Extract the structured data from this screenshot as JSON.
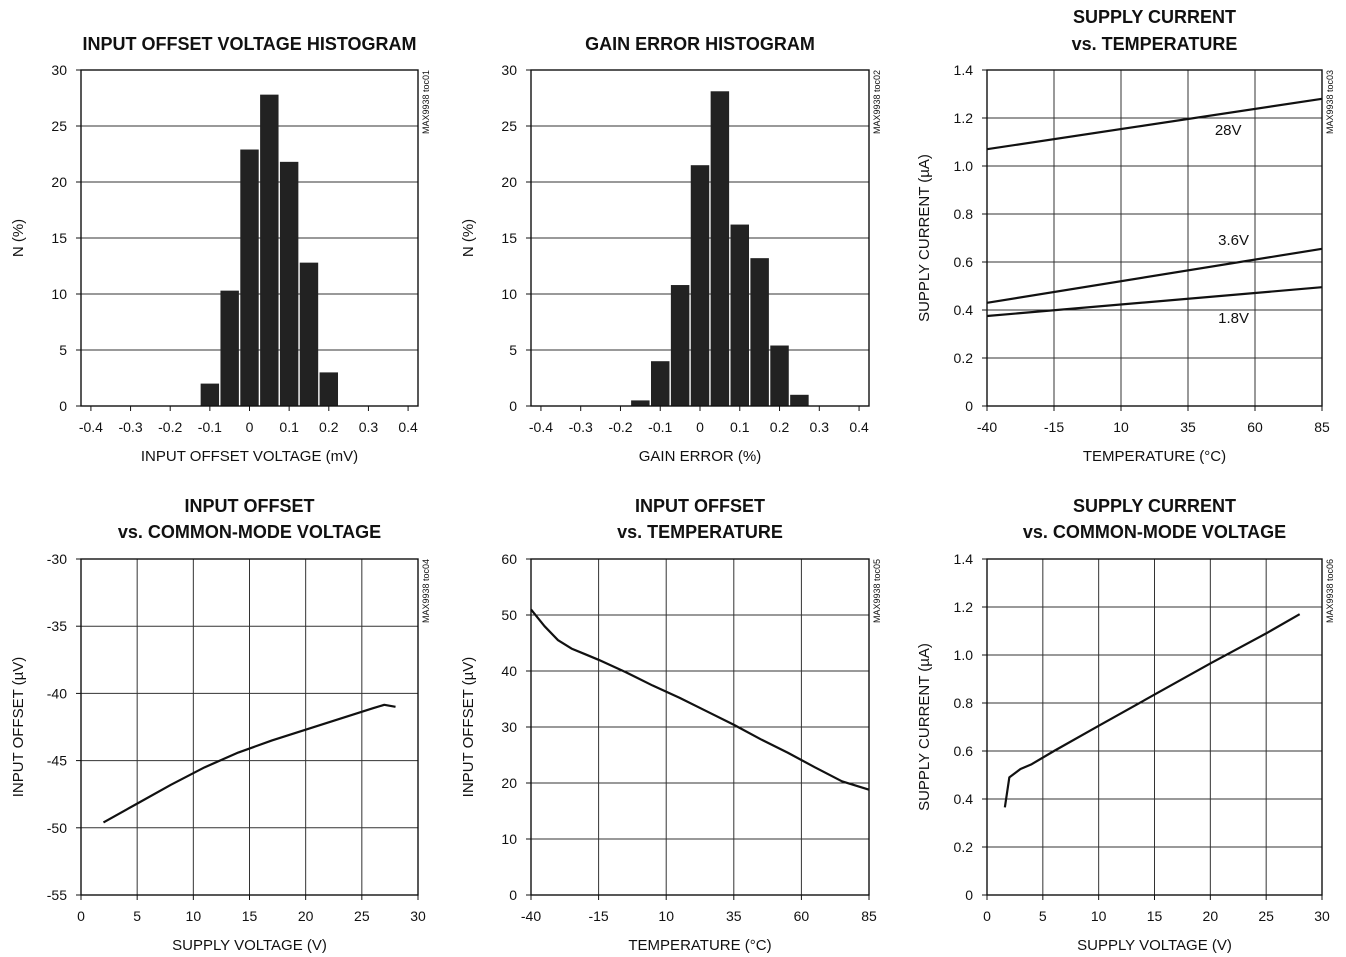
{
  "chart_data": [
    {
      "id": "toc01",
      "type": "bar",
      "title": [
        "INPUT OFFSET VOLTAGE HISTOGRAM"
      ],
      "xlabel": "INPUT OFFSET VOLTAGE (mV)",
      "ylabel": "N (%)",
      "side_code": "MAX9938 toc01",
      "x_range": [
        -0.425,
        0.425
      ],
      "ylim": [
        0,
        30
      ],
      "x_ticks": [
        -0.4,
        -0.3,
        -0.2,
        -0.1,
        0,
        0.1,
        0.2,
        0.3,
        0.4
      ],
      "x_tick_labels": [
        "-0.4",
        "-0.3",
        "-0.2",
        "-0.1",
        "0",
        "0.1",
        "0.2",
        "0.3",
        "0.4"
      ],
      "y_ticks": [
        0,
        5,
        10,
        15,
        20,
        25,
        30
      ],
      "y_tick_labels": [
        "0",
        "5",
        "10",
        "15",
        "20",
        "25",
        "30"
      ],
      "grid": "horizontal",
      "bin_width": 0.05,
      "bin_centers": [
        -0.1,
        -0.05,
        0,
        0.05,
        0.1,
        0.15,
        0.2
      ],
      "values": [
        2.0,
        10.3,
        22.9,
        27.8,
        21.8,
        12.8,
        3.0
      ]
    },
    {
      "id": "toc02",
      "type": "bar",
      "title": [
        "GAIN ERROR HISTOGRAM"
      ],
      "xlabel": "GAIN ERROR (%)",
      "ylabel": "N (%)",
      "side_code": "MAX9938 toc02",
      "x_range": [
        -0.425,
        0.425
      ],
      "ylim": [
        0,
        30
      ],
      "x_ticks": [
        -0.4,
        -0.3,
        -0.2,
        -0.1,
        0,
        0.1,
        0.2,
        0.3,
        0.4
      ],
      "x_tick_labels": [
        "-0.4",
        "-0.3",
        "-0.2",
        "-0.1",
        "0",
        "0.1",
        "0.2",
        "0.3",
        "0.4"
      ],
      "y_ticks": [
        0,
        5,
        10,
        15,
        20,
        25,
        30
      ],
      "y_tick_labels": [
        "0",
        "5",
        "10",
        "15",
        "20",
        "25",
        "30"
      ],
      "grid": "horizontal",
      "bin_width": 0.05,
      "bin_centers": [
        -0.15,
        -0.1,
        -0.05,
        0,
        0.05,
        0.1,
        0.15,
        0.2,
        0.25
      ],
      "values": [
        0.5,
        4.0,
        10.8,
        21.5,
        28.1,
        16.2,
        13.2,
        5.4,
        1.0
      ]
    },
    {
      "id": "toc03",
      "type": "line",
      "title": [
        "SUPPLY CURRENT",
        "vs. TEMPERATURE"
      ],
      "xlabel": "TEMPERATURE (°C)",
      "ylabel": "SUPPLY CURRENT (µA)",
      "side_code": "MAX9938 toc03",
      "xlim": [
        -40,
        85
      ],
      "ylim": [
        0,
        1.4
      ],
      "x_ticks": [
        -40,
        -15,
        10,
        35,
        60,
        85
      ],
      "x_tick_labels": [
        "-40",
        "-15",
        "10",
        "35",
        "60",
        "85"
      ],
      "y_ticks": [
        0,
        0.2,
        0.4,
        0.6,
        0.8,
        1.0,
        1.2,
        1.4
      ],
      "y_tick_labels": [
        "0",
        "0.2",
        "0.4",
        "0.6",
        "0.8",
        "1.0",
        "1.2",
        "1.4"
      ],
      "grid": "both",
      "series": [
        {
          "name": "28V",
          "x": [
            -40,
            85
          ],
          "y": [
            1.07,
            1.28
          ],
          "label_at": [
            50,
            1.13
          ]
        },
        {
          "name": "3.6V",
          "x": [
            -40,
            85
          ],
          "y": [
            0.43,
            0.655
          ],
          "label_at": [
            52,
            0.67
          ]
        },
        {
          "name": "1.8V",
          "x": [
            -40,
            85
          ],
          "y": [
            0.375,
            0.495
          ],
          "label_at": [
            52,
            0.345
          ]
        }
      ]
    },
    {
      "id": "toc04",
      "type": "line",
      "title": [
        "INPUT OFFSET",
        "vs. COMMON-MODE VOLTAGE"
      ],
      "xlabel": "SUPPLY VOLTAGE (V)",
      "ylabel": "INPUT OFFSET (µV)",
      "side_code": "MAX9938 toc04",
      "xlim": [
        0,
        30
      ],
      "ylim": [
        -55,
        -30
      ],
      "x_ticks": [
        0,
        5,
        10,
        15,
        20,
        25,
        30
      ],
      "x_tick_labels": [
        "0",
        "5",
        "10",
        "15",
        "20",
        "25",
        "30"
      ],
      "y_ticks": [
        -55,
        -50,
        -45,
        -40,
        -35,
        -30
      ],
      "y_tick_labels": [
        "-55",
        "-50",
        "-45",
        "-40",
        "-35",
        "-30"
      ],
      "grid": "both",
      "series": [
        {
          "x": [
            2,
            5,
            8,
            11,
            14,
            17,
            20,
            23,
            26,
            27,
            28
          ],
          "y": [
            -49.6,
            -48.2,
            -46.8,
            -45.5,
            -44.4,
            -43.5,
            -42.7,
            -41.9,
            -41.1,
            -40.85,
            -41.0
          ]
        }
      ]
    },
    {
      "id": "toc05",
      "type": "line",
      "title": [
        "INPUT OFFSET",
        "vs. TEMPERATURE"
      ],
      "xlabel": "TEMPERATURE (°C)",
      "ylabel": "INPUT OFFSET (µV)",
      "side_code": "MAX9938 toc05",
      "xlim": [
        -40,
        85
      ],
      "ylim": [
        0,
        60
      ],
      "x_ticks": [
        -40,
        -15,
        10,
        35,
        60,
        85
      ],
      "x_tick_labels": [
        "-40",
        "-15",
        "10",
        "35",
        "60",
        "85"
      ],
      "y_ticks": [
        0,
        10,
        20,
        30,
        40,
        50,
        60
      ],
      "y_tick_labels": [
        "0",
        "10",
        "20",
        "30",
        "40",
        "50",
        "60"
      ],
      "grid": "both",
      "series": [
        {
          "x": [
            -40,
            -35,
            -30,
            -25,
            -20,
            -15,
            -5,
            5,
            15,
            25,
            35,
            45,
            55,
            65,
            75,
            85
          ],
          "y": [
            51,
            48,
            45.5,
            44,
            43,
            42,
            39.8,
            37.4,
            35.2,
            32.8,
            30.4,
            27.8,
            25.4,
            22.8,
            20.3,
            18.8
          ]
        }
      ]
    },
    {
      "id": "toc06",
      "type": "line",
      "title": [
        "SUPPLY CURRENT",
        "vs. COMMON-MODE VOLTAGE"
      ],
      "xlabel": "SUPPLY VOLTAGE (V)",
      "ylabel": "SUPPLY CURRENT (µA)",
      "side_code": "MAX9938 toc06",
      "xlim": [
        0,
        30
      ],
      "ylim": [
        0,
        1.4
      ],
      "x_ticks": [
        0,
        5,
        10,
        15,
        20,
        25,
        30
      ],
      "x_tick_labels": [
        "0",
        "5",
        "10",
        "15",
        "20",
        "25",
        "30"
      ],
      "y_ticks": [
        0,
        0.2,
        0.4,
        0.6,
        0.8,
        1.0,
        1.2,
        1.4
      ],
      "y_tick_labels": [
        "0",
        "0.2",
        "0.4",
        "0.6",
        "0.8",
        "1.0",
        "1.2",
        "1.4"
      ],
      "grid": "both",
      "series": [
        {
          "x": [
            1.6,
            2,
            3,
            4,
            6,
            10,
            15,
            20,
            25,
            28
          ],
          "y": [
            0.365,
            0.49,
            0.525,
            0.545,
            0.6,
            0.705,
            0.835,
            0.965,
            1.09,
            1.17
          ]
        }
      ]
    }
  ]
}
